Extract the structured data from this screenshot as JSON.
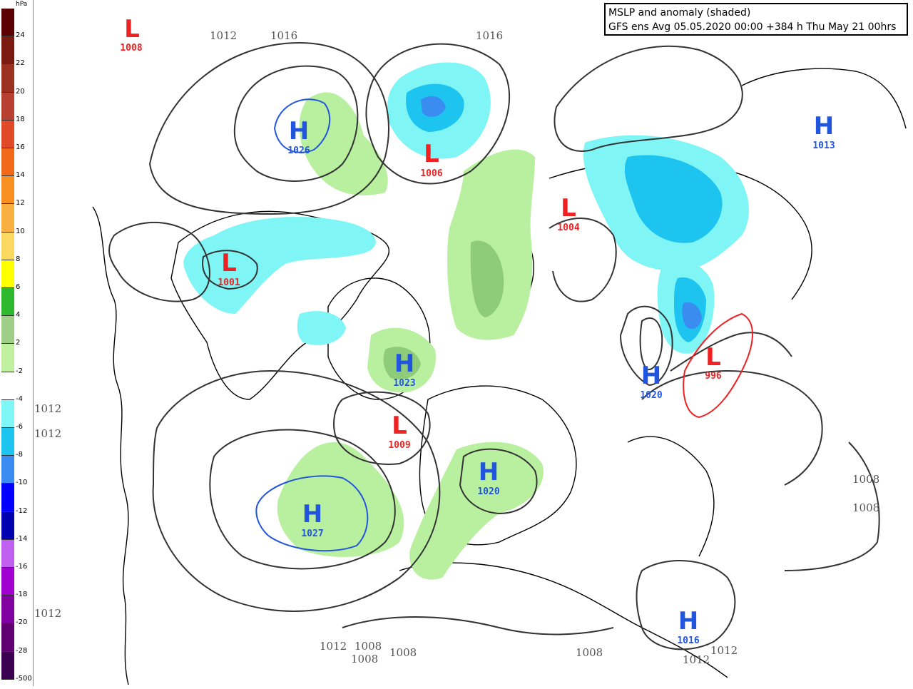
{
  "legend": {
    "unit": "hPa",
    "labels": [
      "24",
      "22",
      "20",
      "18",
      "16",
      "14",
      "12",
      "10",
      "8",
      "6",
      "4",
      "2",
      "-2",
      "-4",
      "-6",
      "-8",
      "-10",
      "-12",
      "-14",
      "-16",
      "-18",
      "-20",
      "-28",
      "-500"
    ],
    "colors": [
      "#5a0000",
      "#7a1a10",
      "#993020",
      "#b84030",
      "#e04a28",
      "#f06a1a",
      "#f79020",
      "#f8b040",
      "#fbd860",
      "#ffff00",
      "#2db82d",
      "#9fcf86",
      "#c0f0a0",
      "#ffffff",
      "#7ff7f7",
      "#1ec4f0",
      "#3a8cf0",
      "#0000ff",
      "#0000b0",
      "#c060f0",
      "#a000d0",
      "#8000a0",
      "#600070",
      "#3c0050"
    ]
  },
  "title": {
    "line1": "MSLP and anomaly (shaded)",
    "line2": "GFS ens Avg 05.05.2020 00:00 +384 h Thu May 21 00hrs"
  },
  "colors": {
    "low": "#ee2222",
    "high": "#2255dd",
    "isobar": "#333333",
    "pos_anom_light": "#b8f0a0",
    "pos_anom_mid": "#8fcc7a",
    "neg_anom_light": "#7ff5f5",
    "neg_anom_mid": "#1ec4f0",
    "neg_anom_dark": "#3a8cf0"
  },
  "systems": {
    "l1": {
      "letter": "L",
      "value": "1008"
    },
    "h1": {
      "letter": "H",
      "value": "1026"
    },
    "l2": {
      "letter": "L",
      "value": "1006"
    },
    "l3": {
      "letter": "L",
      "value": "1004"
    },
    "h2": {
      "letter": "H",
      "value": "1013"
    },
    "l4": {
      "letter": "L",
      "value": "1001"
    },
    "h3": {
      "letter": "H",
      "value": "1023"
    },
    "h4": {
      "letter": "H",
      "value": "1020"
    },
    "l5": {
      "letter": "L",
      "value": "996"
    },
    "l6": {
      "letter": "L",
      "value": "1009"
    },
    "h5": {
      "letter": "H",
      "value": "1020"
    },
    "h6": {
      "letter": "H",
      "value": "1027"
    },
    "h7": {
      "letter": "H",
      "value": "1016"
    }
  },
  "isobar_labels": {
    "a": "1012",
    "b": "1016",
    "c": "1016",
    "d": "1012",
    "e": "1012",
    "f": "1012",
    "g": "1012",
    "h": "1012",
    "i": "1008",
    "j": "1008",
    "k": "1008",
    "l": "1008",
    "m": "1012",
    "n": "1012",
    "o": "1008",
    "p": "1008"
  }
}
